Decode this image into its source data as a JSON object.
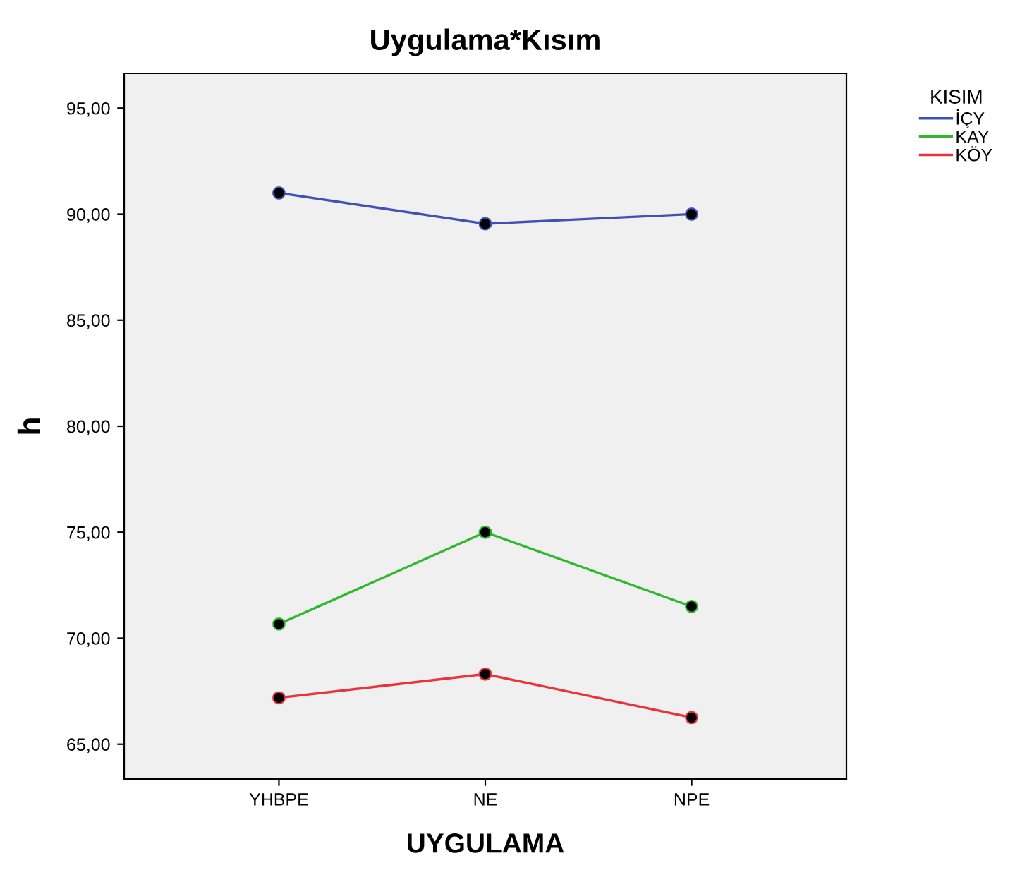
{
  "chart_data": {
    "type": "line",
    "title": "Uygulama*Kısım",
    "xlabel": "UYGULAMA",
    "ylabel": "h",
    "legend_title": "KISIM",
    "legend": "top right",
    "marker": "circle",
    "line_style": "solid",
    "grid": false,
    "categories": [
      "YHBPE",
      "NE",
      "NPE"
    ],
    "ylim": [
      63.36,
      96.64
    ],
    "yticks": [
      {
        "value": 65,
        "label": "65,00"
      },
      {
        "value": 70,
        "label": "70,00"
      },
      {
        "value": 75,
        "label": "75,00"
      },
      {
        "value": 80,
        "label": "80,00"
      },
      {
        "value": 85,
        "label": "85,00"
      },
      {
        "value": 90,
        "label": "90,00"
      },
      {
        "value": 95,
        "label": "95,00"
      }
    ],
    "series": [
      {
        "name": "İÇY",
        "color": "#3f51b5",
        "values": [
          91.0,
          89.55,
          90.0
        ]
      },
      {
        "name": "KAY",
        "color": "#2eb82e",
        "values": [
          70.67,
          75.0,
          71.5
        ]
      },
      {
        "name": "KÖY",
        "color": "#e8353d",
        "values": [
          67.19,
          68.31,
          66.26
        ]
      }
    ]
  }
}
